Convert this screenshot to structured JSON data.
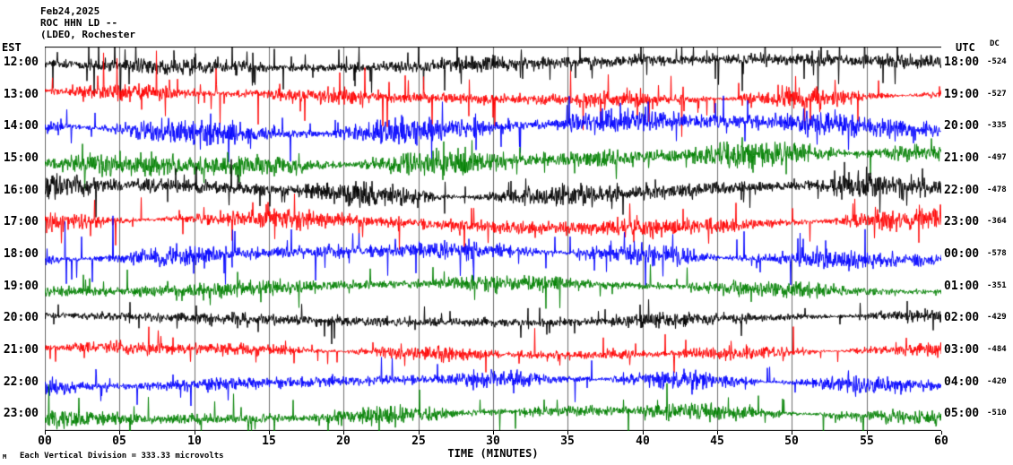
{
  "header": {
    "date": "Feb24,2025",
    "station": "ROC HHN LD --",
    "location": "(LDEO, Rochester"
  },
  "axes": {
    "left": "EST",
    "right": "UTC",
    "dc": "DC"
  },
  "footer": {
    "scale_note": "Each Vertical Division =  333.33 microvolts",
    "watermark": "M"
  },
  "chart_data": {
    "type": "line",
    "title": "Helicorder seismogram ROC HHN LD (Feb24,2025)",
    "xlabel": "TIME (MINUTES)",
    "x_range_minutes": [
      0,
      60
    ],
    "x_tick_interval_minutes": 5,
    "x_ticks": [
      "00",
      "05",
      "10",
      "15",
      "20",
      "25",
      "30",
      "35",
      "40",
      "45",
      "50",
      "55",
      "60"
    ],
    "grid": true,
    "microvolts_per_division": "333.33",
    "trace_colors_cycle": [
      "#000000",
      "#ff0000",
      "#0000ff",
      "#008000"
    ],
    "rows": [
      {
        "est": "12:00",
        "utc": "18:00",
        "dc": "-524",
        "color": "#000000",
        "amp": 6,
        "spikes": 130,
        "spike_amp": 26
      },
      {
        "est": "13:00",
        "utc": "19:00",
        "dc": "-527",
        "color": "#ff0000",
        "amp": 6,
        "spikes": 90,
        "spike_amp": 30
      },
      {
        "est": "14:00",
        "utc": "20:00",
        "dc": "-335",
        "color": "#0000ff",
        "amp": 9,
        "spikes": 80,
        "spike_amp": 24
      },
      {
        "est": "15:00",
        "utc": "21:00",
        "dc": "-497",
        "color": "#008000",
        "amp": 9,
        "spikes": 60,
        "spike_amp": 18
      },
      {
        "est": "16:00",
        "utc": "22:00",
        "dc": "-478",
        "color": "#000000",
        "amp": 8,
        "spikes": 70,
        "spike_amp": 22
      },
      {
        "est": "17:00",
        "utc": "23:00",
        "dc": "-364",
        "color": "#ff0000",
        "amp": 7,
        "spikes": 70,
        "spike_amp": 26
      },
      {
        "est": "18:00",
        "utc": "00:00",
        "dc": "-578",
        "color": "#0000ff",
        "amp": 7,
        "spikes": 80,
        "spike_amp": 30
      },
      {
        "est": "19:00",
        "utc": "01:00",
        "dc": "-351",
        "color": "#008000",
        "amp": 6,
        "spikes": 50,
        "spike_amp": 20
      },
      {
        "est": "20:00",
        "utc": "02:00",
        "dc": "-429",
        "color": "#000000",
        "amp": 5,
        "spikes": 50,
        "spike_amp": 16
      },
      {
        "est": "21:00",
        "utc": "03:00",
        "dc": "-484",
        "color": "#ff0000",
        "amp": 5,
        "spikes": 60,
        "spike_amp": 20
      },
      {
        "est": "22:00",
        "utc": "04:00",
        "dc": "-420",
        "color": "#0000ff",
        "amp": 6,
        "spikes": 50,
        "spike_amp": 18
      },
      {
        "est": "23:00",
        "utc": "05:00",
        "dc": "-510",
        "color": "#008000",
        "amp": 6,
        "spikes": 55,
        "spike_amp": 22
      }
    ]
  }
}
